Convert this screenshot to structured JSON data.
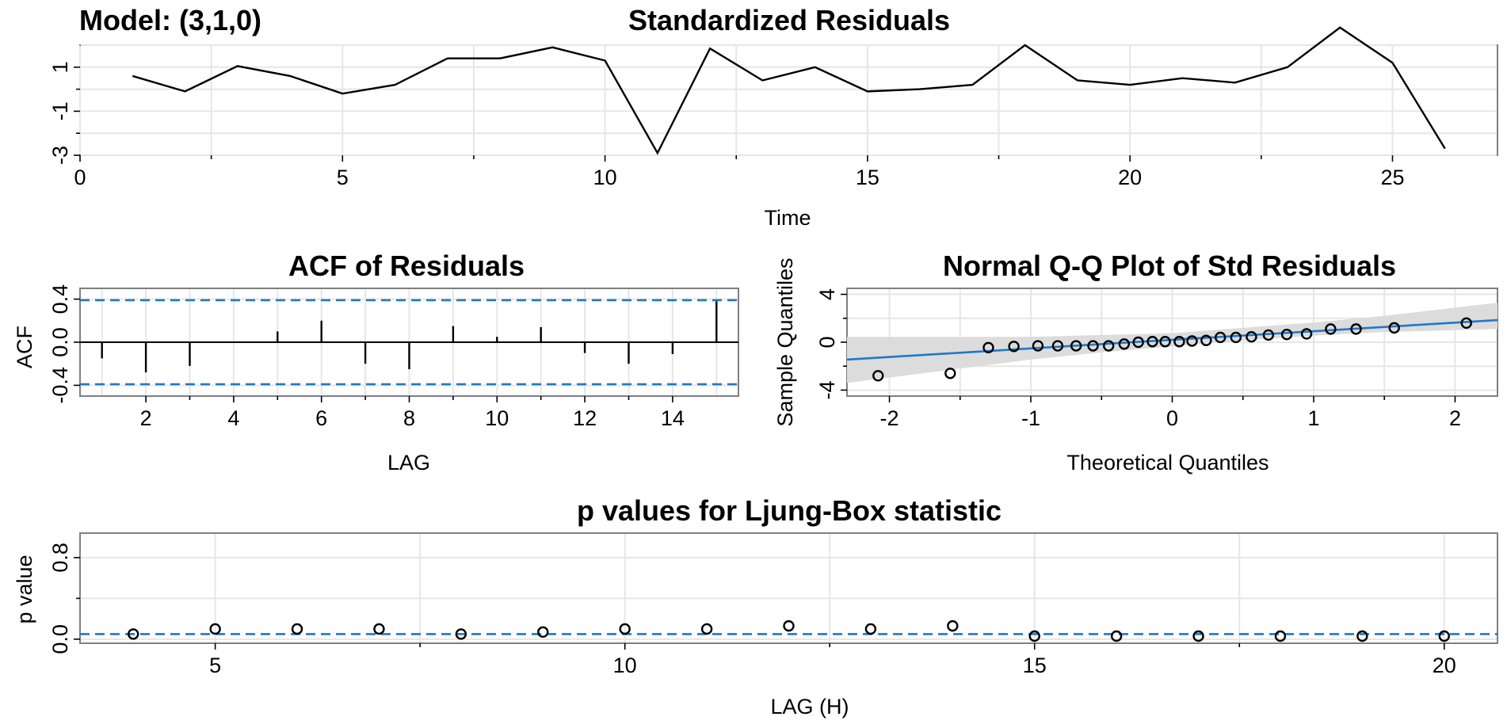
{
  "model_label": "Model: (3,1,0)",
  "colors": {
    "line": "#000000",
    "blue": "#1f78c8",
    "grid": "#e6e6e6",
    "band": "#dcdcdc",
    "frame": "#7f7f7f"
  },
  "chart_data": [
    {
      "id": "residuals",
      "type": "line",
      "title": "Standardized Residuals",
      "xlabel": "Time",
      "ylabel": "",
      "xlim": [
        0,
        27
      ],
      "ylim": [
        -3,
        2
      ],
      "xticks": [
        0,
        5,
        10,
        15,
        20,
        25
      ],
      "yticks": [
        -3,
        -1,
        1
      ],
      "x": [
        1,
        2,
        3,
        4,
        5,
        6,
        7,
        8,
        9,
        10,
        11,
        12,
        13,
        14,
        15,
        16,
        17,
        18,
        19,
        20,
        21,
        22,
        23,
        24,
        25,
        26
      ],
      "y": [
        0.6,
        -0.1,
        1.05,
        0.6,
        -0.2,
        0.2,
        1.4,
        1.4,
        1.9,
        1.3,
        -2.9,
        1.85,
        0.4,
        1.0,
        -0.1,
        0.0,
        0.2,
        2.0,
        0.4,
        0.2,
        0.5,
        0.3,
        1.0,
        2.8,
        1.2,
        -2.7
      ]
    },
    {
      "id": "acf",
      "type": "bar",
      "title": "ACF of Residuals",
      "xlabel": "LAG",
      "ylabel": "ACF",
      "xlim": [
        0.5,
        15.5
      ],
      "ylim": [
        -0.5,
        0.5
      ],
      "xticks": [
        2,
        4,
        6,
        8,
        10,
        12,
        14
      ],
      "yticks": [
        -0.4,
        0.0,
        0.4
      ],
      "ytick_labels": [
        "-0.4",
        "0.0",
        "0.4"
      ],
      "lags": [
        1,
        2,
        3,
        4,
        5,
        6,
        7,
        8,
        9,
        10,
        11,
        12,
        13,
        14,
        15
      ],
      "values": [
        -0.15,
        -0.28,
        -0.22,
        0.0,
        0.1,
        0.2,
        -0.2,
        -0.25,
        0.15,
        0.05,
        0.14,
        -0.1,
        -0.2,
        -0.11,
        0.38
      ],
      "confidence": [
        -0.39,
        0.39
      ]
    },
    {
      "id": "qq",
      "type": "scatter",
      "title": "Normal Q-Q Plot of Std Residuals",
      "xlabel": "Theoretical Quantiles",
      "ylabel": "Sample Quantiles",
      "xlim": [
        -2.3,
        2.3
      ],
      "ylim": [
        -4.5,
        4.5
      ],
      "xticks": [
        -2,
        -1,
        0,
        1,
        2
      ],
      "yticks": [
        -4,
        0,
        4
      ],
      "x": [
        -2.08,
        -1.57,
        -1.3,
        -1.12,
        -0.95,
        -0.81,
        -0.68,
        -0.56,
        -0.45,
        -0.34,
        -0.24,
        -0.14,
        -0.05,
        0.05,
        0.14,
        0.24,
        0.34,
        0.45,
        0.56,
        0.68,
        0.81,
        0.95,
        1.12,
        1.3,
        1.57,
        2.08
      ],
      "y": [
        -2.8,
        -2.6,
        -0.45,
        -0.35,
        -0.3,
        -0.3,
        -0.3,
        -0.3,
        -0.3,
        -0.15,
        0.0,
        0.05,
        0.05,
        0.05,
        0.1,
        0.15,
        0.4,
        0.4,
        0.45,
        0.6,
        0.65,
        0.7,
        1.1,
        1.1,
        1.2,
        1.6
      ],
      "fit_line": {
        "x": [
          -2.3,
          2.3
        ],
        "y": [
          -1.45,
          1.85
        ]
      },
      "band": {
        "x": [
          -2.3,
          -1.5,
          -1.0,
          -0.5,
          0.0,
          0.5,
          1.0,
          1.5,
          2.3
        ],
        "lower": [
          -3.4,
          -2.2,
          -1.45,
          -0.85,
          -0.35,
          0.15,
          0.55,
          0.85,
          1.1
        ],
        "upper": [
          0.45,
          0.45,
          0.45,
          0.6,
          0.75,
          1.2,
          1.65,
          2.2,
          3.3
        ]
      }
    },
    {
      "id": "ljungbox",
      "type": "scatter",
      "title": "p values for Ljung-Box statistic",
      "xlabel": "LAG (H)",
      "ylabel": "p value",
      "xlim": [
        3.35,
        20.65
      ],
      "ylim": [
        -0.04,
        1.04
      ],
      "xticks": [
        5,
        10,
        15,
        20
      ],
      "yticks": [
        0.0,
        0.8
      ],
      "ytick_labels": [
        "0.0",
        "0.8"
      ],
      "x": [
        4,
        5,
        6,
        7,
        8,
        9,
        10,
        11,
        12,
        13,
        14,
        15,
        16,
        17,
        18,
        19,
        20
      ],
      "y": [
        0.05,
        0.1,
        0.1,
        0.1,
        0.05,
        0.07,
        0.1,
        0.1,
        0.13,
        0.1,
        0.13,
        0.03,
        0.03,
        0.03,
        0.03,
        0.03,
        0.03
      ],
      "reference_line": 0.05
    }
  ]
}
